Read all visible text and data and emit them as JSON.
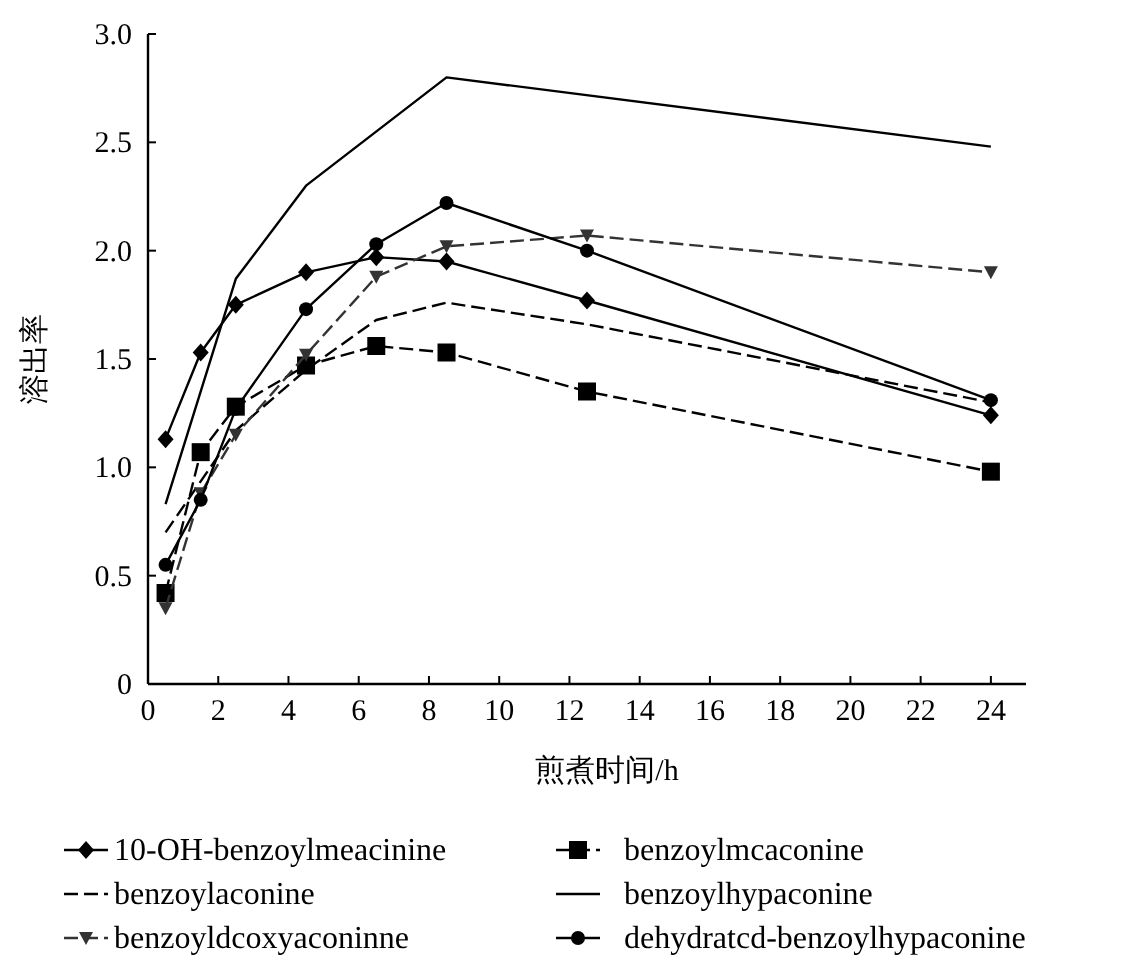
{
  "chart_data": {
    "type": "line",
    "xlabel": "煎煮时间/h",
    "ylabel": "溶出率",
    "xlim": [
      0,
      25
    ],
    "ylim": [
      0,
      3
    ],
    "xticks": [
      0,
      2,
      4,
      6,
      8,
      10,
      12,
      14,
      16,
      18,
      20,
      22,
      24
    ],
    "yticks": [
      {
        "value": 0,
        "label": "0"
      },
      0.5,
      {
        "value": 1,
        "label": "1.0"
      },
      1.5,
      {
        "value": 2,
        "label": "2.0"
      },
      2.5,
      {
        "value": 3,
        "label": "3.0"
      }
    ],
    "grid": false,
    "legend": "bottom",
    "series": [
      {
        "name": "10-OH-benzoylmeacinine",
        "color": "#000000",
        "marker": "diamond",
        "line_style": "solid",
        "x": [
          0.5,
          1.5,
          2.5,
          4.5,
          6.5,
          8.5,
          12.5,
          24
        ],
        "values": [
          1.13,
          1.53,
          1.75,
          1.9,
          1.97,
          1.95,
          1.77,
          1.24
        ]
      },
      {
        "name": "benzoylmcaconine",
        "color": "#000000",
        "marker": "square",
        "line_style": "dashed",
        "x": [
          0.5,
          1.5,
          2.5,
          4.5,
          6.5,
          8.5,
          12.5,
          24
        ],
        "values": [
          0.42,
          1.07,
          1.28,
          1.47,
          1.56,
          1.53,
          1.35,
          0.98
        ]
      },
      {
        "name": "benzoylaconine",
        "color": "#000000",
        "marker": "none",
        "line_style": "dashed",
        "x": [
          0.5,
          2.5,
          4.5,
          6.5,
          8.5,
          12.5,
          24
        ],
        "values": [
          0.7,
          1.17,
          1.45,
          1.68,
          1.76,
          1.66,
          1.3
        ]
      },
      {
        "name": "benzoylhypaconine",
        "color": "#000000",
        "marker": "none",
        "line_style": "solid",
        "x": [
          0.5,
          2.5,
          4.5,
          8.5,
          24
        ],
        "values": [
          0.83,
          1.87,
          2.3,
          2.8,
          2.48
        ]
      },
      {
        "name": "benzoyldcoxyaconinne",
        "color": "#333333",
        "marker": "triangle",
        "line_style": "dashed",
        "x": [
          0.5,
          1.5,
          2.5,
          4.5,
          6.5,
          8.5,
          12.5,
          24
        ],
        "values": [
          0.35,
          0.88,
          1.15,
          1.52,
          1.88,
          2.02,
          2.07,
          1.9
        ]
      },
      {
        "name": "dehydratcd-benzoylhypaconine",
        "color": "#000000",
        "marker": "circle",
        "line_style": "solid",
        "x": [
          0.5,
          1.5,
          2.5,
          4.5,
          6.5,
          8.5,
          12.5,
          24
        ],
        "values": [
          0.55,
          0.85,
          1.27,
          1.73,
          2.03,
          2.22,
          2.0,
          1.31
        ]
      }
    ]
  }
}
